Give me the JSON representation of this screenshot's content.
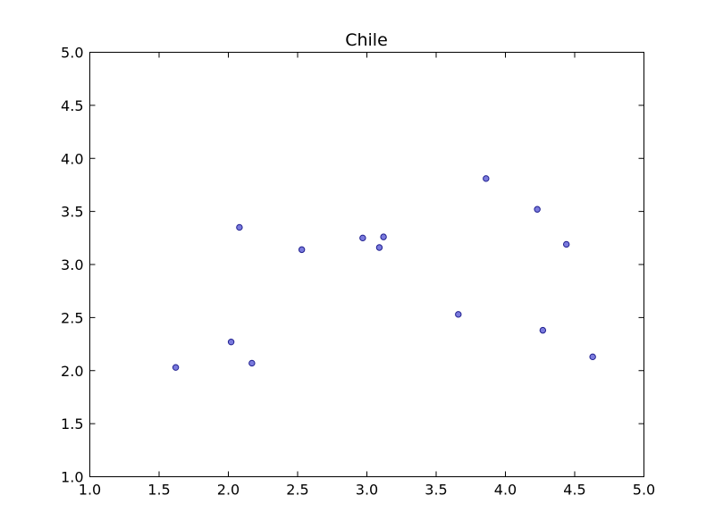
{
  "chart_data": {
    "type": "scatter",
    "title": "Chile",
    "xlabel": "",
    "ylabel": "",
    "xlim": [
      1.0,
      5.0
    ],
    "ylim": [
      1.0,
      5.0
    ],
    "xticks": [
      "1.0",
      "1.5",
      "2.0",
      "2.5",
      "3.0",
      "3.5",
      "4.0",
      "4.5",
      "5.0"
    ],
    "yticks": [
      "1.0",
      "1.5",
      "2.0",
      "2.5",
      "3.0",
      "3.5",
      "4.0",
      "4.5",
      "5.0"
    ],
    "grid": false,
    "marker_color": "#6b6bd9",
    "series": [
      {
        "points": [
          {
            "x": 1.62,
            "y": 2.03
          },
          {
            "x": 2.02,
            "y": 2.27
          },
          {
            "x": 2.08,
            "y": 3.35
          },
          {
            "x": 2.17,
            "y": 2.07
          },
          {
            "x": 2.53,
            "y": 3.14
          },
          {
            "x": 2.97,
            "y": 3.25
          },
          {
            "x": 3.09,
            "y": 3.16
          },
          {
            "x": 3.12,
            "y": 3.26
          },
          {
            "x": 3.66,
            "y": 2.53
          },
          {
            "x": 3.86,
            "y": 3.81
          },
          {
            "x": 4.23,
            "y": 3.52
          },
          {
            "x": 4.27,
            "y": 2.38
          },
          {
            "x": 4.44,
            "y": 3.19
          },
          {
            "x": 4.63,
            "y": 2.13
          }
        ]
      }
    ]
  }
}
